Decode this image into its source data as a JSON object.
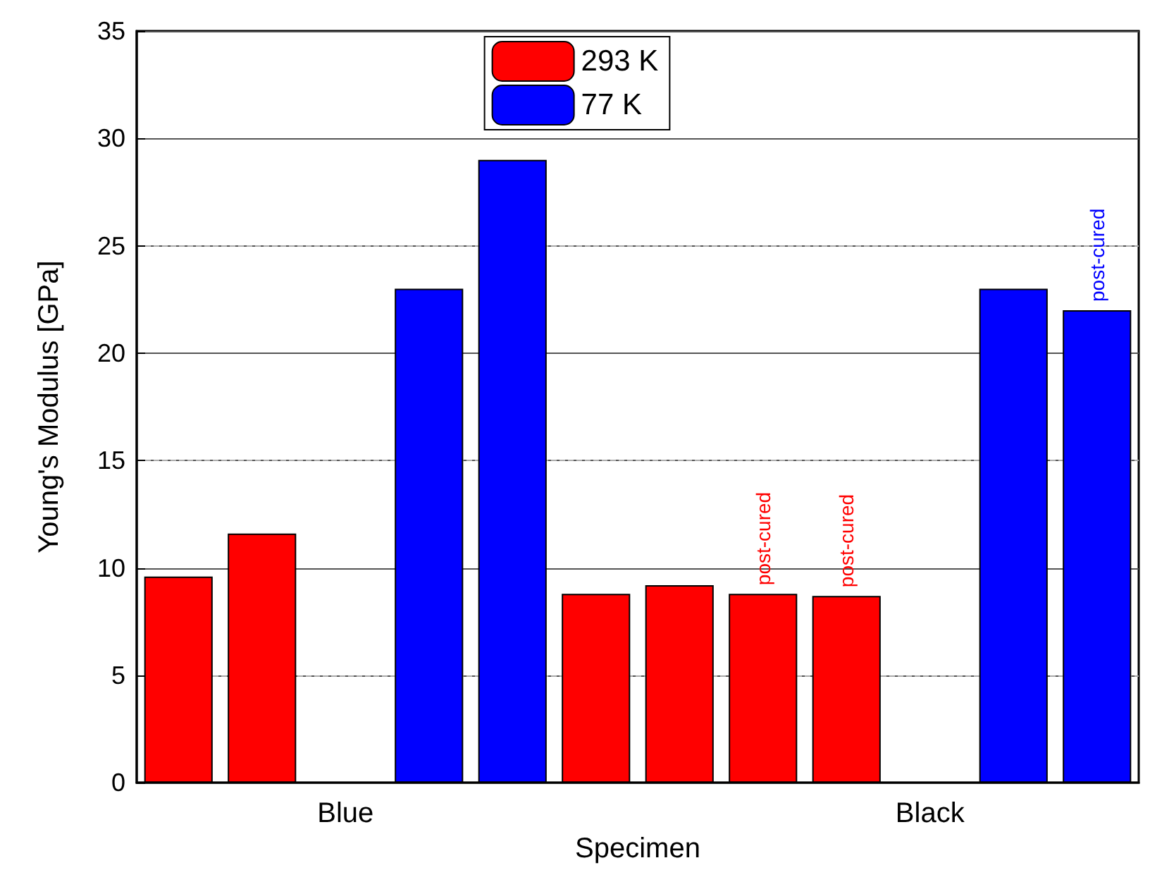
{
  "chart_data": {
    "type": "bar",
    "xlabel": "Specimen",
    "ylabel": "Young's Modulus [GPa]",
    "categories": [
      null,
      null,
      "Blue",
      null,
      null,
      null,
      null,
      null,
      null,
      "Black",
      null,
      null
    ],
    "series": [
      {
        "name": "293 K",
        "color": "#ff0000",
        "values": [
          9.6,
          11.6,
          null,
          null,
          null,
          8.8,
          9.2,
          8.8,
          8.7,
          null,
          null,
          null
        ],
        "value_labels": [
          null,
          null,
          null,
          null,
          null,
          null,
          null,
          "post-cured",
          "post-cured",
          null,
          null,
          null
        ]
      },
      {
        "name": "77 K",
        "color": "#0000ff",
        "values": [
          null,
          null,
          null,
          23.0,
          29.0,
          null,
          null,
          null,
          null,
          null,
          23.0,
          22.0
        ],
        "value_labels": [
          null,
          null,
          null,
          null,
          null,
          null,
          null,
          null,
          null,
          null,
          null,
          "post-cured"
        ]
      }
    ],
    "ylim": [
      0,
      35
    ],
    "yticks": [
      0,
      5,
      10,
      15,
      20,
      25,
      30,
      35
    ],
    "grid": "y",
    "legend": "top"
  }
}
